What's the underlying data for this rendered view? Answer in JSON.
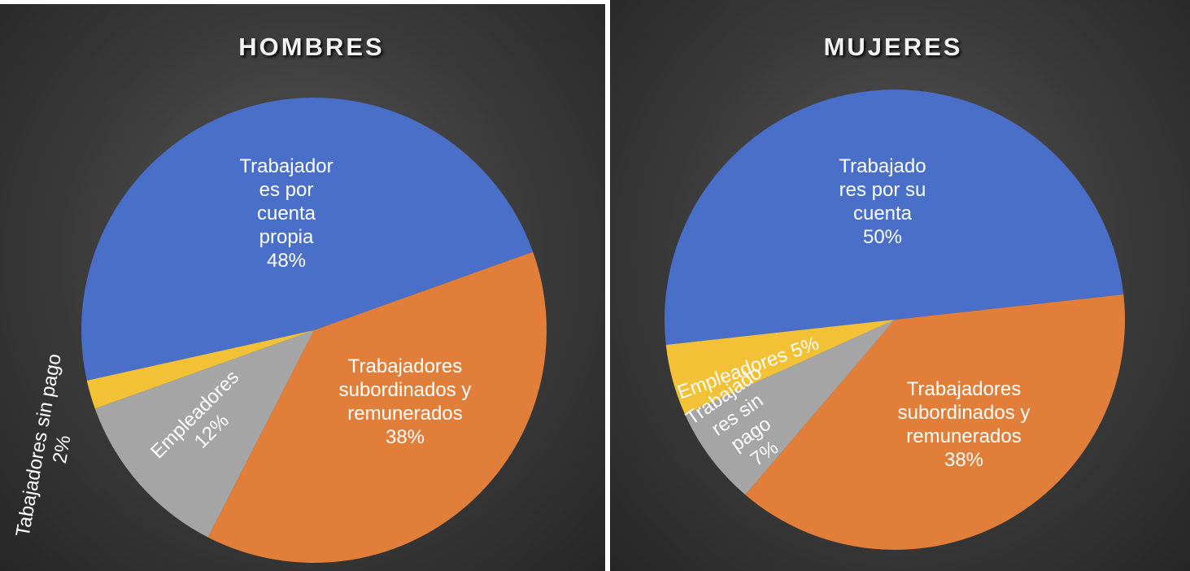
{
  "chart_data": [
    {
      "type": "pie",
      "title": "HOMBRES",
      "categories": [
        "Trabajadores por cuenta propia",
        "Trabajadores subordinados y remunerados",
        "Empleadores",
        "Tabajadores sin pago"
      ],
      "values": [
        48,
        38,
        12,
        2
      ],
      "value_labels": [
        "48%",
        "38%",
        "12%",
        "2%"
      ],
      "colors": [
        "#4a6fc9",
        "#e17f3a",
        "#a5a5a5",
        "#f3c136"
      ]
    },
    {
      "type": "pie",
      "title": "MUJERES",
      "categories": [
        "Trabajadores por su cuenta",
        "Trabajadores subordinados y remunerados",
        "Trabajadores sin pago",
        "Empleadores"
      ],
      "values": [
        50,
        38,
        7,
        5
      ],
      "value_labels": [
        "50%",
        "38%",
        "7%",
        "5%"
      ],
      "colors": [
        "#4a6fc9",
        "#e17f3a",
        "#a5a5a5",
        "#f3c136"
      ]
    }
  ]
}
